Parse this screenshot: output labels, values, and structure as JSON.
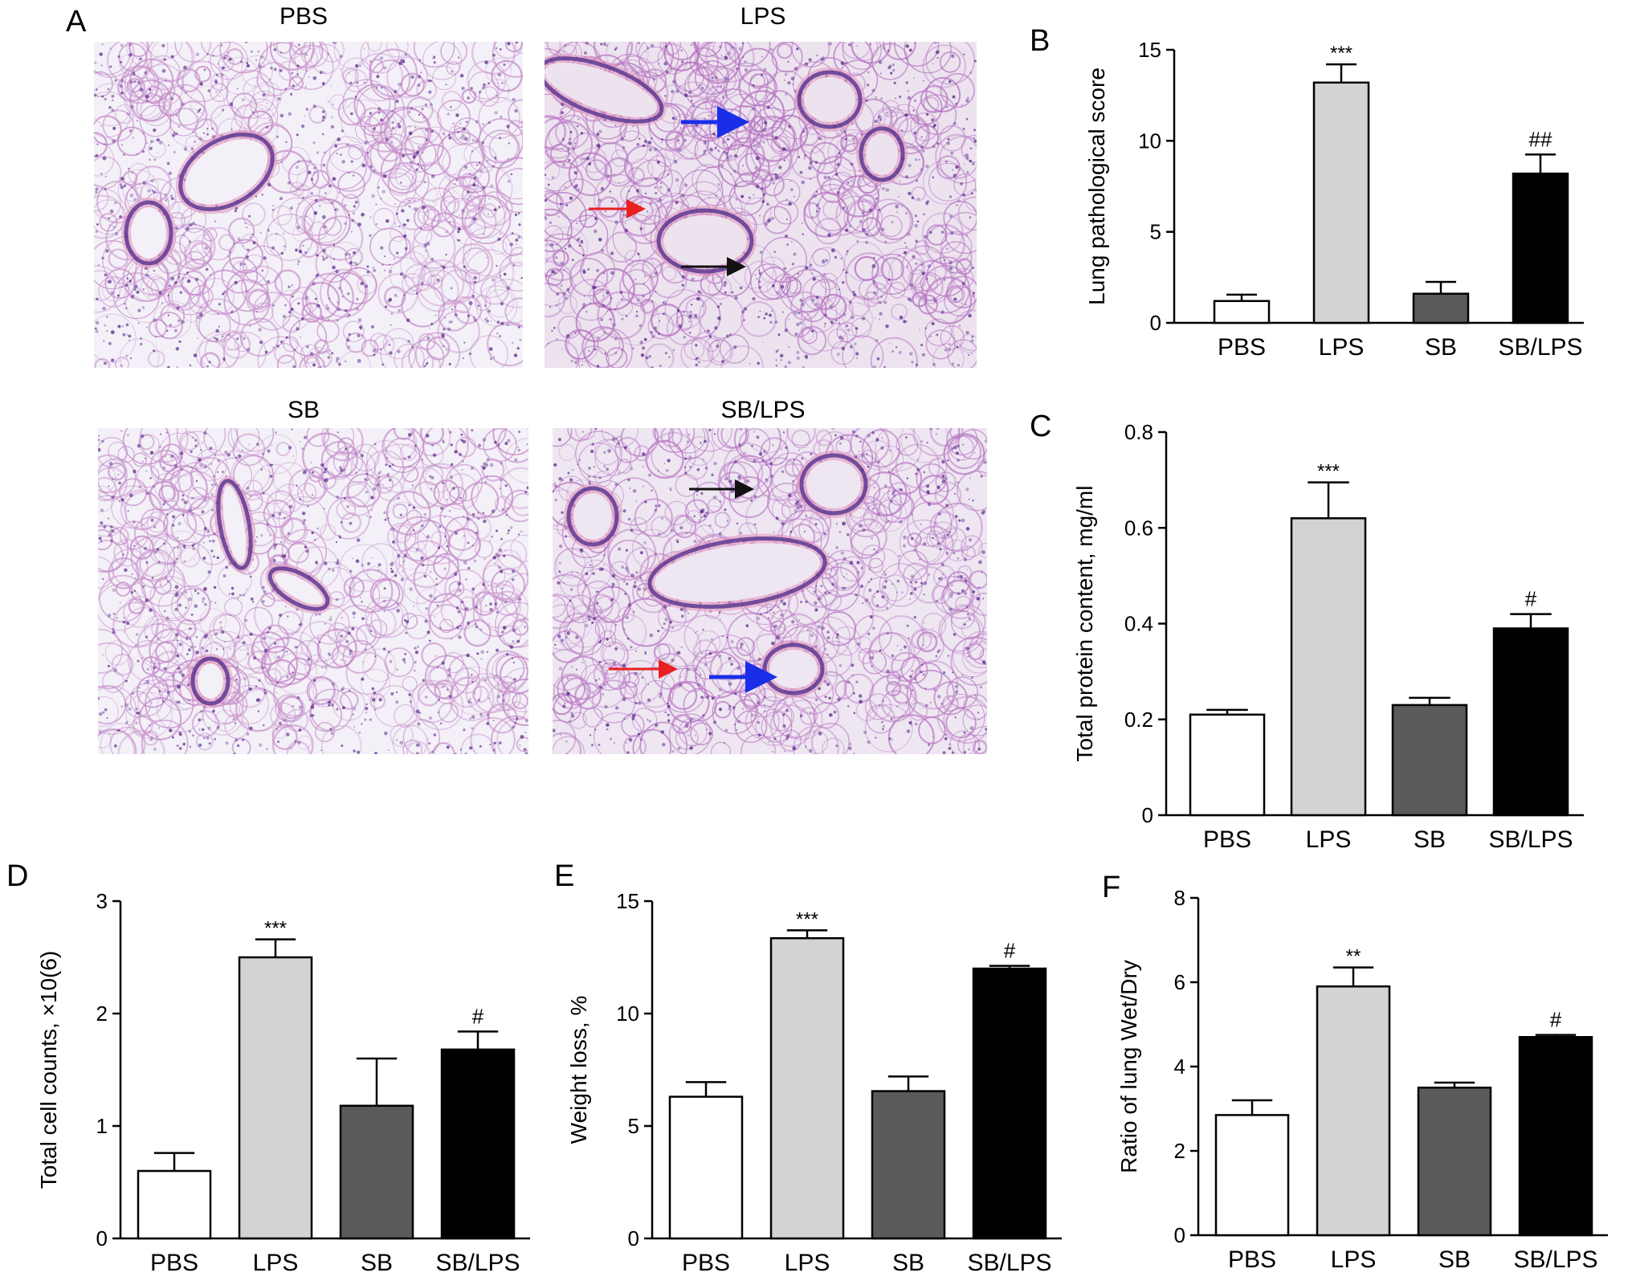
{
  "panel_letters": {
    "A": "A",
    "B": "B",
    "C": "C",
    "D": "D",
    "E": "E",
    "F": "F"
  },
  "micrographs": [
    {
      "id": "pbs",
      "title": "PBS",
      "bg": "#f3f0f7",
      "tissue": "#c48ac9",
      "arrows": []
    },
    {
      "id": "lps",
      "title": "LPS",
      "bg": "#ece3ef",
      "tissue": "#b573c0",
      "arrows": [
        "blue",
        "red",
        "black"
      ]
    },
    {
      "id": "sb",
      "title": "SB",
      "bg": "#f3f0f7",
      "tissue": "#c48ac9",
      "arrows": []
    },
    {
      "id": "sblps",
      "title": "SB/LPS",
      "bg": "#eee6f1",
      "tissue": "#b97ac4",
      "arrows": [
        "black",
        "red",
        "blue"
      ]
    }
  ],
  "arrow_colors": {
    "blue": "#1a2ee8",
    "red": "#e82020",
    "black": "#111111"
  },
  "bar_fills": [
    "#ffffff",
    "#d3d3d3",
    "#5a5a5a",
    "#000000"
  ],
  "chart_data": [
    {
      "panel": "B",
      "type": "bar",
      "ylabel": "Lung pathological score",
      "categories": [
        "PBS",
        "LPS",
        "SB",
        "SB/LPS"
      ],
      "values": [
        1.2,
        13.2,
        1.6,
        8.2
      ],
      "errors": [
        0.35,
        1.0,
        0.65,
        1.05
      ],
      "annotations": [
        "",
        "***",
        "",
        "##"
      ],
      "ylim": [
        0,
        15
      ],
      "yticks": [
        0,
        5,
        10,
        15
      ],
      "yticklabels": [
        "0",
        "5",
        "10",
        "15"
      ]
    },
    {
      "panel": "C",
      "type": "bar",
      "ylabel": "Total protein content, mg/ml",
      "categories": [
        "PBS",
        "LPS",
        "SB",
        "SB/LPS"
      ],
      "values": [
        0.21,
        0.62,
        0.23,
        0.39
      ],
      "errors": [
        0.01,
        0.075,
        0.015,
        0.03
      ],
      "annotations": [
        "",
        "***",
        "",
        "#"
      ],
      "ylim": [
        0,
        0.8
      ],
      "yticks": [
        0,
        0.2,
        0.4,
        0.6,
        0.8
      ],
      "yticklabels": [
        "0",
        "0.2",
        "0.4",
        "0.6",
        "0.8"
      ]
    },
    {
      "panel": "D",
      "type": "bar",
      "ylabel": "Total cell counts, ×10(6)",
      "categories": [
        "PBS",
        "LPS",
        "SB",
        "SB/LPS"
      ],
      "values": [
        0.6,
        2.5,
        1.18,
        1.68
      ],
      "errors": [
        0.16,
        0.16,
        0.42,
        0.16
      ],
      "annotations": [
        "",
        "***",
        "",
        "#"
      ],
      "ylim": [
        0,
        3
      ],
      "yticks": [
        0,
        1,
        2,
        3
      ],
      "yticklabels": [
        "0",
        "1",
        "2",
        "3"
      ]
    },
    {
      "panel": "E",
      "type": "bar",
      "ylabel": "Weight loss, %",
      "categories": [
        "PBS",
        "LPS",
        "SB",
        "SB/LPS"
      ],
      "values": [
        6.3,
        13.35,
        6.55,
        12.0
      ],
      "errors": [
        0.65,
        0.35,
        0.65,
        0.12
      ],
      "annotations": [
        "",
        "***",
        "",
        "#"
      ],
      "ylim": [
        0,
        15
      ],
      "yticks": [
        0,
        5,
        10,
        15
      ],
      "yticklabels": [
        "0",
        "5",
        "10",
        "15"
      ]
    },
    {
      "panel": "F",
      "type": "bar",
      "ylabel": "Ratio of lung Wet/Dry",
      "categories": [
        "PBS",
        "LPS",
        "SB",
        "SB/LPS"
      ],
      "values": [
        2.85,
        5.9,
        3.5,
        4.7
      ],
      "errors": [
        0.35,
        0.45,
        0.12,
        0.05
      ],
      "annotations": [
        "",
        "**",
        "",
        "#"
      ],
      "ylim": [
        0,
        8
      ],
      "yticks": [
        0,
        2,
        4,
        6,
        8
      ],
      "yticklabels": [
        "0",
        "2",
        "4",
        "6",
        "8"
      ]
    }
  ]
}
